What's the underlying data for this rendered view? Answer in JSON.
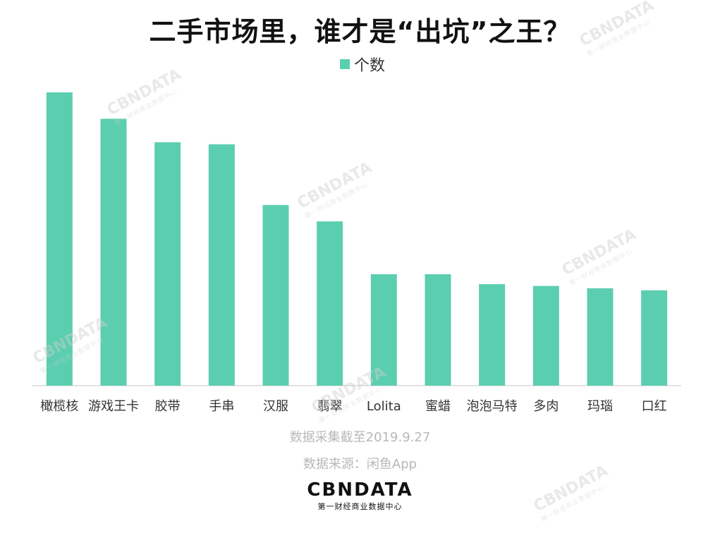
{
  "title": "二手市场里，谁才是“出坑”之王？",
  "legend": {
    "label": "个数",
    "color": "#5cceb0"
  },
  "notes": {
    "date": "数据采集截至2019.9.27",
    "source": "数据来源：闲鱼App"
  },
  "logo": {
    "main": "CBNDATA",
    "sub": "第一财经商业数据中心"
  },
  "watermark": {
    "main": "CBNDATA",
    "sub": "第一财经商业数据中心"
  },
  "chart_data": {
    "type": "bar",
    "categories": [
      "橄榄核",
      "游戏王卡",
      "胶带",
      "手串",
      "汉服",
      "翡翠",
      "Lolita",
      "蜜蜡",
      "泡泡马特",
      "多肉",
      "玛瑙",
      "口红"
    ],
    "series": [
      {
        "name": "个数",
        "values": [
          100,
          91,
          83,
          82.3,
          61.6,
          56,
          38,
          38,
          34.6,
          34,
          33.2,
          32.5
        ]
      }
    ],
    "ylim": [
      0,
      100
    ],
    "color": "#5cceb0",
    "grid": false,
    "y_axis_visible": false,
    "legend_position": "top-center"
  }
}
